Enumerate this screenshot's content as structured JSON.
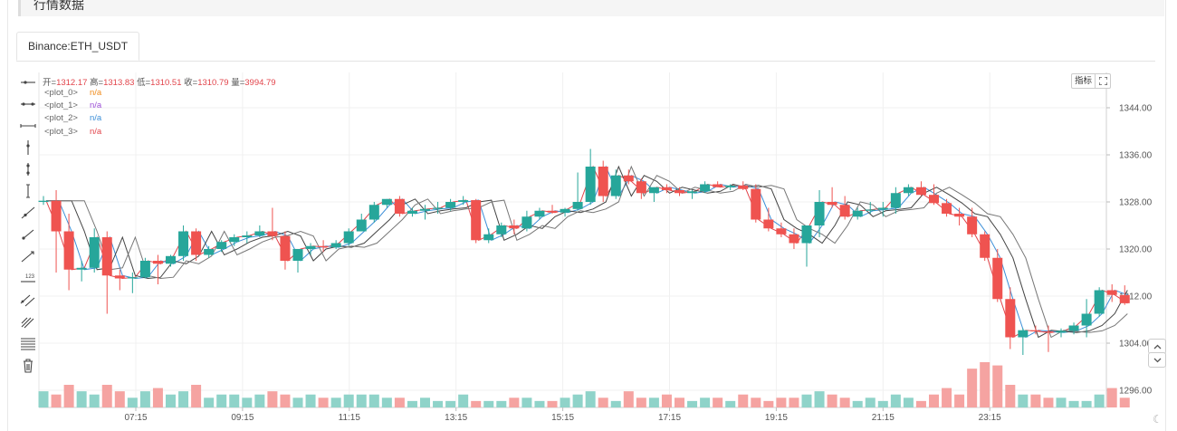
{
  "section": {
    "title": "行情数据"
  },
  "tabs": [
    {
      "label": "Binance:ETH_USDT",
      "active": true
    }
  ],
  "ohlc": {
    "open_label": "开=",
    "open": "1312.17",
    "high_label": "高=",
    "high": "1313.83",
    "low_label": "低=",
    "low": "1310.51",
    "close_label": "收=",
    "close": "1310.79",
    "vol_label": "量=",
    "vol": "3994.79"
  },
  "legend": [
    {
      "name": "<plot_0>",
      "value": "n/a",
      "color": "#f08c1c"
    },
    {
      "name": "<plot_1>",
      "value": "n/a",
      "color": "#9c4fd6"
    },
    {
      "name": "<plot_2>",
      "value": "n/a",
      "color": "#3c8fd8"
    },
    {
      "name": "<plot_3>",
      "value": "n/a",
      "color": "#e2444b"
    }
  ],
  "indicator_button": {
    "label": "指标"
  },
  "toolbar": [
    "horizontal-ray-icon",
    "horizontal-segment-icon",
    "horizontal-line-icon",
    "vertical-ray-icon",
    "vertical-segment-icon",
    "vertical-line-icon",
    "ray-icon",
    "segment-icon",
    "trend-line-icon",
    "price-range-icon",
    "parallel-channel-icon",
    "multi-line-icon",
    "fib-levels-icon",
    "trash-icon"
  ],
  "colors": {
    "up": "#26a69a",
    "down": "#ef5350",
    "up_vol": "#8fd3c9",
    "down_vol": "#f5a3a1",
    "grid": "#f0f0f0"
  },
  "chart_data": {
    "type": "candlestick",
    "symbol": "Binance:ETH_USDT",
    "y_ticks": [
      "1344.00",
      "1336.00",
      "1328.00",
      "1320.00",
      "1312.00",
      "1304.00",
      "1296.00"
    ],
    "ylim": [
      1296,
      1348
    ],
    "x_ticks": [
      "07:15",
      "09:15",
      "11:15",
      "13:15",
      "15:15",
      "17:15",
      "19:15",
      "21:15",
      "23:15"
    ],
    "candles": [
      [
        1328.0,
        1329.0,
        1327.5,
        1328.2
      ],
      [
        1328.2,
        1330.0,
        1316.0,
        1323.0
      ],
      [
        1323.0,
        1326.0,
        1313.0,
        1316.5
      ],
      [
        1316.5,
        1318.0,
        1314.5,
        1316.8
      ],
      [
        1316.8,
        1323.5,
        1316.0,
        1322.0
      ],
      [
        1322.0,
        1323.0,
        1309.0,
        1315.5
      ],
      [
        1315.5,
        1316.5,
        1313.0,
        1315.0
      ],
      [
        1315.0,
        1316.0,
        1312.5,
        1315.2
      ],
      [
        1315.2,
        1318.5,
        1315.0,
        1318.0
      ],
      [
        1318.0,
        1319.0,
        1314.0,
        1317.5
      ],
      [
        1317.5,
        1319.0,
        1317.0,
        1318.8
      ],
      [
        1318.8,
        1324.0,
        1318.0,
        1323.0
      ],
      [
        1323.0,
        1323.5,
        1318.0,
        1319.0
      ],
      [
        1319.0,
        1320.5,
        1318.5,
        1320.0
      ],
      [
        1320.0,
        1321.5,
        1319.5,
        1321.2
      ],
      [
        1321.2,
        1322.5,
        1320.5,
        1322.0
      ],
      [
        1322.0,
        1323.0,
        1321.0,
        1322.3
      ],
      [
        1322.3,
        1324.0,
        1322.0,
        1323.0
      ],
      [
        1323.0,
        1327.0,
        1321.5,
        1322.2
      ],
      [
        1322.2,
        1323.0,
        1316.5,
        1318.0
      ],
      [
        1318.0,
        1320.0,
        1316.0,
        1320.0
      ],
      [
        1320.0,
        1321.0,
        1319.0,
        1320.5
      ],
      [
        1320.5,
        1321.5,
        1319.5,
        1320.3
      ],
      [
        1320.3,
        1321.5,
        1320.0,
        1321.0
      ],
      [
        1321.0,
        1323.5,
        1320.5,
        1323.0
      ],
      [
        1323.0,
        1326.0,
        1323.0,
        1325.0
      ],
      [
        1325.0,
        1328.0,
        1324.5,
        1327.5
      ],
      [
        1327.5,
        1328.5,
        1327.0,
        1328.5
      ],
      [
        1328.5,
        1329.0,
        1325.5,
        1326.0
      ],
      [
        1326.0,
        1327.0,
        1325.5,
        1326.5
      ],
      [
        1326.5,
        1327.5,
        1325.0,
        1326.8
      ],
      [
        1326.8,
        1328.0,
        1326.0,
        1327.0
      ],
      [
        1327.0,
        1328.5,
        1326.5,
        1328.0
      ],
      [
        1328.0,
        1329.0,
        1327.5,
        1328.3
      ],
      [
        1328.3,
        1328.5,
        1321.0,
        1321.5
      ],
      [
        1321.5,
        1323.5,
        1321.0,
        1322.5
      ],
      [
        1322.5,
        1324.5,
        1322.0,
        1324.0
      ],
      [
        1324.0,
        1325.0,
        1322.5,
        1323.5
      ],
      [
        1323.5,
        1326.5,
        1323.0,
        1325.5
      ],
      [
        1325.5,
        1327.0,
        1325.0,
        1326.5
      ],
      [
        1326.5,
        1327.5,
        1326.0,
        1326.2
      ],
      [
        1326.2,
        1327.0,
        1325.5,
        1326.8
      ],
      [
        1326.8,
        1333.0,
        1326.5,
        1328.0
      ],
      [
        1328.0,
        1337.0,
        1327.5,
        1334.0
      ],
      [
        1334.0,
        1335.0,
        1328.0,
        1329.0
      ],
      [
        1329.0,
        1333.5,
        1328.5,
        1332.5
      ],
      [
        1332.5,
        1333.5,
        1331.0,
        1331.5
      ],
      [
        1331.5,
        1332.0,
        1328.5,
        1329.5
      ],
      [
        1329.5,
        1330.5,
        1328.0,
        1330.5
      ],
      [
        1330.5,
        1331.0,
        1329.5,
        1330.0
      ],
      [
        1330.0,
        1330.5,
        1329.0,
        1329.5
      ],
      [
        1329.5,
        1330.0,
        1328.5,
        1329.8
      ],
      [
        1329.8,
        1331.5,
        1329.5,
        1331.0
      ],
      [
        1331.0,
        1331.5,
        1330.5,
        1330.5
      ],
      [
        1330.5,
        1331.0,
        1330.0,
        1330.8
      ],
      [
        1330.8,
        1331.5,
        1330.0,
        1330.2
      ],
      [
        1330.2,
        1331.0,
        1324.5,
        1325.0
      ],
      [
        1325.0,
        1327.0,
        1323.0,
        1323.5
      ],
      [
        1323.5,
        1324.5,
        1322.0,
        1322.5
      ],
      [
        1322.5,
        1323.5,
        1320.0,
        1321.0
      ],
      [
        1321.0,
        1324.0,
        1317.0,
        1324.0
      ],
      [
        1324.0,
        1330.0,
        1322.0,
        1328.0
      ],
      [
        1328.0,
        1330.5,
        1327.0,
        1327.5
      ],
      [
        1327.5,
        1329.0,
        1325.0,
        1325.5
      ],
      [
        1325.5,
        1327.0,
        1325.0,
        1326.5
      ],
      [
        1326.5,
        1328.0,
        1326.0,
        1326.7
      ],
      [
        1326.7,
        1328.0,
        1325.5,
        1327.0
      ],
      [
        1327.0,
        1330.5,
        1326.0,
        1329.5
      ],
      [
        1329.5,
        1331.0,
        1329.0,
        1330.5
      ],
      [
        1330.5,
        1331.5,
        1329.0,
        1329.2
      ],
      [
        1329.2,
        1331.0,
        1327.5,
        1327.8
      ],
      [
        1327.8,
        1328.5,
        1325.5,
        1326.0
      ],
      [
        1326.0,
        1327.0,
        1324.0,
        1325.5
      ],
      [
        1325.5,
        1327.0,
        1322.0,
        1322.5
      ],
      [
        1322.5,
        1323.0,
        1318.0,
        1318.5
      ],
      [
        1318.5,
        1320.0,
        1311.0,
        1311.5
      ],
      [
        1311.5,
        1313.5,
        1303.0,
        1305.0
      ],
      [
        1305.0,
        1306.5,
        1302.0,
        1306.2
      ],
      [
        1306.2,
        1307.0,
        1305.5,
        1306.0
      ],
      [
        1306.0,
        1307.0,
        1302.5,
        1305.8
      ],
      [
        1305.8,
        1306.5,
        1305.0,
        1306.1
      ],
      [
        1306.1,
        1307.5,
        1305.5,
        1307.0
      ],
      [
        1307.0,
        1311.5,
        1305.0,
        1309.0
      ],
      [
        1309.0,
        1313.5,
        1308.5,
        1313.0
      ],
      [
        1313.0,
        1314.0,
        1311.0,
        1312.2
      ],
      [
        1312.17,
        1313.83,
        1310.51,
        1310.79
      ]
    ],
    "volumes": [
      5,
      4,
      7,
      5,
      4,
      7,
      5,
      3,
      5,
      6,
      4,
      5,
      7,
      3,
      4,
      4,
      3,
      4,
      5,
      4,
      3,
      4,
      3,
      3,
      4,
      4,
      4,
      3,
      3,
      2,
      3,
      2,
      2,
      4,
      2,
      2,
      2,
      3,
      3,
      2,
      2,
      3,
      4,
      5,
      3,
      2,
      5,
      3,
      3,
      4,
      3,
      2,
      3,
      3,
      2,
      4,
      3,
      2,
      3,
      3,
      4,
      5,
      4,
      3,
      2,
      3,
      2,
      4,
      3,
      2,
      4,
      6,
      4,
      12,
      14,
      13,
      7,
      4,
      4,
      3,
      3,
      2,
      2,
      4,
      6,
      3
    ]
  }
}
